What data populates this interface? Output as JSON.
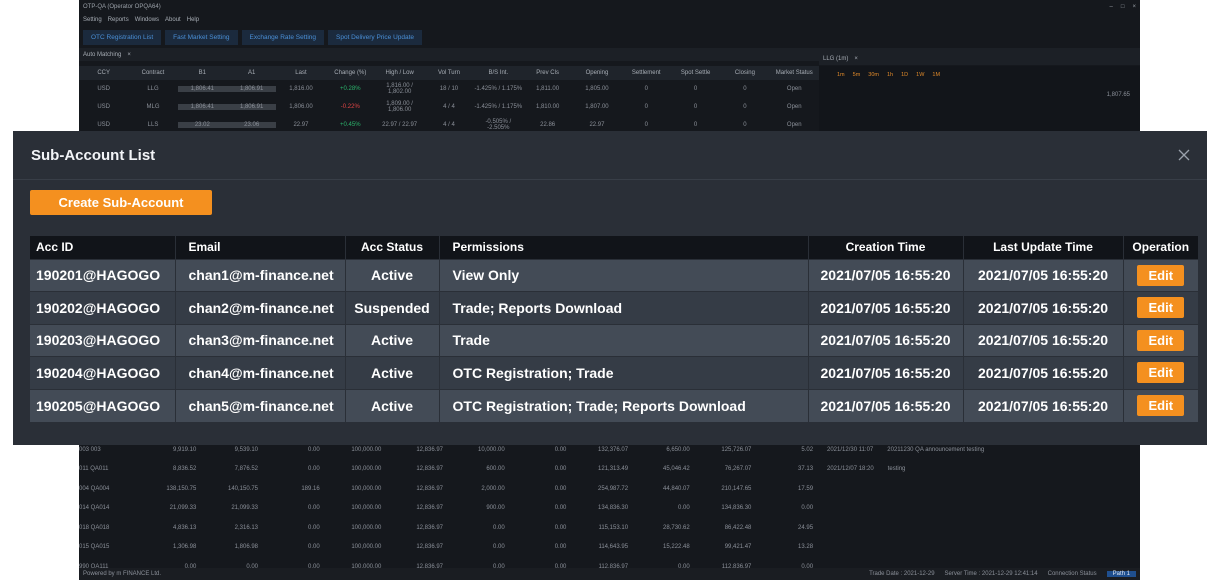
{
  "background_app": {
    "title": "OTP-QA (Operator OPQA64)",
    "menu": [
      "Setting",
      "Reports",
      "Windows",
      "About",
      "Help"
    ],
    "tabs": [
      "OTC Registration List",
      "Fast Market Setting",
      "Exchange Rate Setting",
      "Spot Delivery Price Update"
    ],
    "panel_title": "Auto Matching",
    "right_panel_title": "LLG (1m)",
    "columns": [
      "CCY",
      "Contract",
      "B1",
      "A1",
      "Last",
      "Change (%)",
      "High / Low",
      "Vol Turn",
      "B/S Int.",
      "Prev Cls",
      "Opening",
      "Settlement",
      "Spot Settle",
      "Closing",
      "Market Status"
    ],
    "rows": [
      [
        "USD",
        "LLG",
        "1,806.41",
        "1,806.91",
        "1,816.00",
        "+0.28%",
        "1,816.00 / 1,802.00",
        "18 / 10",
        "-1.425% / 1.175%",
        "1,811.00",
        "1,805.00",
        "0",
        "0",
        "0",
        "Open"
      ],
      [
        "USD",
        "MLG",
        "1,806.41",
        "1,806.91",
        "1,806.00",
        "-0.22%",
        "1,809.00 / 1,806.00",
        "4 / 4",
        "-1.425% / 1.175%",
        "1,810.00",
        "1,807.00",
        "0",
        "0",
        "0",
        "Open"
      ],
      [
        "USD",
        "LLS",
        "23.02",
        "23.06",
        "22.97",
        "+0.45%",
        "22.97 / 22.97",
        "4 / 4",
        "-0.505% / -2.505%",
        "22.86",
        "22.97",
        "0",
        "0",
        "0",
        "Open"
      ]
    ],
    "chart_ranges": [
      "1m",
      "5m",
      "30m",
      "1h",
      "1D",
      "1W",
      "1M"
    ],
    "chart_price": "1,807.65",
    "lower_rows": [
      [
        "003 003",
        "9,919.10",
        "9,539.10",
        "0.00",
        "100,000.00",
        "12,836.97",
        "10,000.00",
        "0.00",
        "132,376.07",
        "6,650.00",
        "125,726.07",
        "5.02"
      ],
      [
        "011 QA011",
        "8,836.52",
        "7,876.52",
        "0.00",
        "100,000.00",
        "12,836.97",
        "600.00",
        "0.00",
        "121,313.49",
        "45,046.42",
        "76,267.07",
        "37.13"
      ],
      [
        "004 QA004",
        "138,150.75",
        "140,150.75",
        "189.16",
        "100,000.00",
        "12,836.97",
        "2,000.00",
        "0.00",
        "254,987.72",
        "44,840.07",
        "210,147.65",
        "17.59"
      ],
      [
        "014 QA014",
        "21,099.33",
        "21,099.33",
        "0.00",
        "100,000.00",
        "12,836.97",
        "900.00",
        "0.00",
        "134,836.30",
        "0.00",
        "134,836.30",
        "0.00"
      ],
      [
        "018 QA018",
        "4,836.13",
        "2,316.13",
        "0.00",
        "100,000.00",
        "12,836.97",
        "0.00",
        "0.00",
        "115,153.10",
        "28,730.62",
        "86,422.48",
        "24.95"
      ],
      [
        "015 QA015",
        "1,306.98",
        "1,806.98",
        "0.00",
        "100,000.00",
        "12,836.97",
        "0.00",
        "0.00",
        "114,643.95",
        "15,222.48",
        "99,421.47",
        "13.28"
      ],
      [
        "990 QA111",
        "0.00",
        "0.00",
        "0.00",
        "100,000.00",
        "12,836.97",
        "0.00",
        "0.00",
        "112,836.97",
        "0.00",
        "112,836.97",
        "0.00"
      ]
    ],
    "log_rows": [
      [
        "2021/12/30 11:07",
        "20211230 QA announcement testing"
      ],
      [
        "2021/12/07 18:20",
        "testing"
      ]
    ],
    "footer_left": "Powered by m FINANCE Ltd.",
    "footer_trade_date": "Trade Date : 2021-12-29",
    "footer_server_time": "Server Time : 2021-12-29 12:41:14",
    "footer_connection": "Connection Status",
    "footer_path": "Path 1"
  },
  "modal": {
    "title": "Sub-Account List",
    "create_button": "Create Sub-Account",
    "columns": [
      "Acc ID",
      "Email",
      "Acc Status",
      "Permissions",
      "Creation Time",
      "Last Update Time",
      "Operation"
    ],
    "edit_label": "Edit",
    "rows": [
      {
        "acc_id": "190201@HAGOGO",
        "email": "chan1@m-finance.net",
        "status": "Active",
        "permissions": "View Only",
        "created": "2021/07/05 16:55:20",
        "updated": "2021/07/05 16:55:20"
      },
      {
        "acc_id": "190202@HAGOGO",
        "email": "chan2@m-finance.net",
        "status": "Suspended",
        "permissions": "Trade; Reports Download",
        "created": "2021/07/05 16:55:20",
        "updated": "2021/07/05 16:55:20"
      },
      {
        "acc_id": "190203@HAGOGO",
        "email": "chan3@m-finance.net",
        "status": "Active",
        "permissions": "Trade",
        "created": "2021/07/05 16:55:20",
        "updated": "2021/07/05 16:55:20"
      },
      {
        "acc_id": "190204@HAGOGO",
        "email": "chan4@m-finance.net",
        "status": "Active",
        "permissions": "OTC Registration; Trade",
        "created": "2021/07/05 16:55:20",
        "updated": "2021/07/05 16:55:20"
      },
      {
        "acc_id": "190205@HAGOGO",
        "email": "chan5@m-finance.net",
        "status": "Active",
        "permissions": "OTC Registration; Trade; Reports Download",
        "created": "2021/07/05 16:55:20",
        "updated": "2021/07/05 16:55:20"
      }
    ]
  },
  "colors": {
    "accent": "#f4901f",
    "modal_bg": "#2a2f37",
    "header_bg": "#111419",
    "row_odd": "#434b56",
    "row_even": "#353c46",
    "app_bg": "#15181d"
  },
  "icons": {
    "close": "close-icon"
  }
}
